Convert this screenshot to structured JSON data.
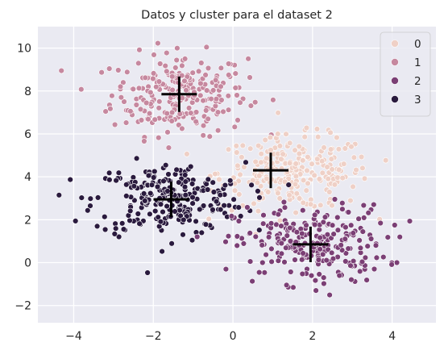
{
  "chart_data": {
    "type": "scatter",
    "title": "Datos y cluster para el dataset 2",
    "xlabel": "",
    "ylabel": "",
    "xlim": [
      -4.9,
      5.1
    ],
    "ylim": [
      -2.8,
      11.0
    ],
    "xticks": [
      -4,
      -2,
      0,
      2,
      4
    ],
    "yticks": [
      -2,
      0,
      2,
      4,
      6,
      8,
      10
    ],
    "grid": true,
    "legend_position": "top-right",
    "series": [
      {
        "name": "0",
        "color": "#efd0c6",
        "count": 250,
        "center": [
          1.55,
          4.2
        ],
        "spread": [
          0.95,
          0.85
        ]
      },
      {
        "name": "1",
        "color": "#c6889f",
        "count": 250,
        "center": [
          -1.35,
          7.85
        ],
        "spread": [
          0.85,
          0.95
        ]
      },
      {
        "name": "2",
        "color": "#7b3f75",
        "count": 250,
        "center": [
          1.95,
          0.85
        ],
        "spread": [
          0.95,
          0.9
        ]
      },
      {
        "name": "3",
        "color": "#2a1a3e",
        "count": 250,
        "center": [
          -1.6,
          2.95
        ],
        "spread": [
          0.95,
          0.85
        ]
      }
    ],
    "centroids": [
      {
        "x": 0.95,
        "y": 4.3
      },
      {
        "x": -1.35,
        "y": 7.85
      },
      {
        "x": 1.95,
        "y": 0.85
      },
      {
        "x": -1.55,
        "y": 2.95
      }
    ],
    "centroid_marker": "+"
  }
}
